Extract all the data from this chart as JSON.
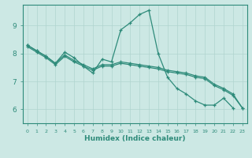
{
  "xlabel": "Humidex (Indice chaleur)",
  "line_color": "#2e8b7a",
  "bg_color": "#cce8e4",
  "grid_color": "#b0d4cf",
  "ylim": [
    5.5,
    9.75
  ],
  "yticks": [
    6,
    7,
    8,
    9
  ],
  "xticks": [
    0,
    1,
    2,
    3,
    4,
    5,
    6,
    7,
    8,
    9,
    10,
    11,
    12,
    13,
    14,
    15,
    16,
    17,
    18,
    19,
    20,
    21,
    22,
    23
  ],
  "x_main": [
    0,
    1,
    2,
    3,
    4,
    5,
    6,
    7,
    8,
    9,
    10,
    11,
    12,
    13,
    14,
    15,
    16,
    17,
    18,
    19,
    20,
    21,
    22
  ],
  "y_main": [
    8.3,
    8.1,
    7.9,
    7.65,
    8.05,
    7.85,
    7.55,
    7.3,
    7.8,
    7.7,
    8.85,
    9.1,
    9.4,
    9.55,
    8.0,
    7.15,
    6.75,
    6.55,
    6.3,
    6.15,
    6.15,
    6.4,
    6.05
  ],
  "x_t": [
    0,
    1,
    2,
    3,
    4,
    5,
    6,
    7,
    8,
    9,
    10,
    11,
    12,
    13,
    14,
    15,
    16,
    17,
    18,
    19,
    20,
    21,
    22,
    23
  ],
  "y_trend1": [
    8.3,
    8.1,
    7.9,
    7.65,
    7.95,
    7.75,
    7.6,
    7.45,
    7.6,
    7.6,
    7.7,
    7.65,
    7.6,
    7.55,
    7.5,
    7.4,
    7.35,
    7.3,
    7.2,
    7.15,
    6.9,
    6.75,
    6.55,
    6.05
  ],
  "y_trend2": [
    8.25,
    8.05,
    7.85,
    7.6,
    7.9,
    7.7,
    7.55,
    7.4,
    7.55,
    7.55,
    7.65,
    7.6,
    7.55,
    7.5,
    7.45,
    7.35,
    7.3,
    7.25,
    7.15,
    7.1,
    6.85,
    6.7,
    6.5,
    6.05
  ]
}
